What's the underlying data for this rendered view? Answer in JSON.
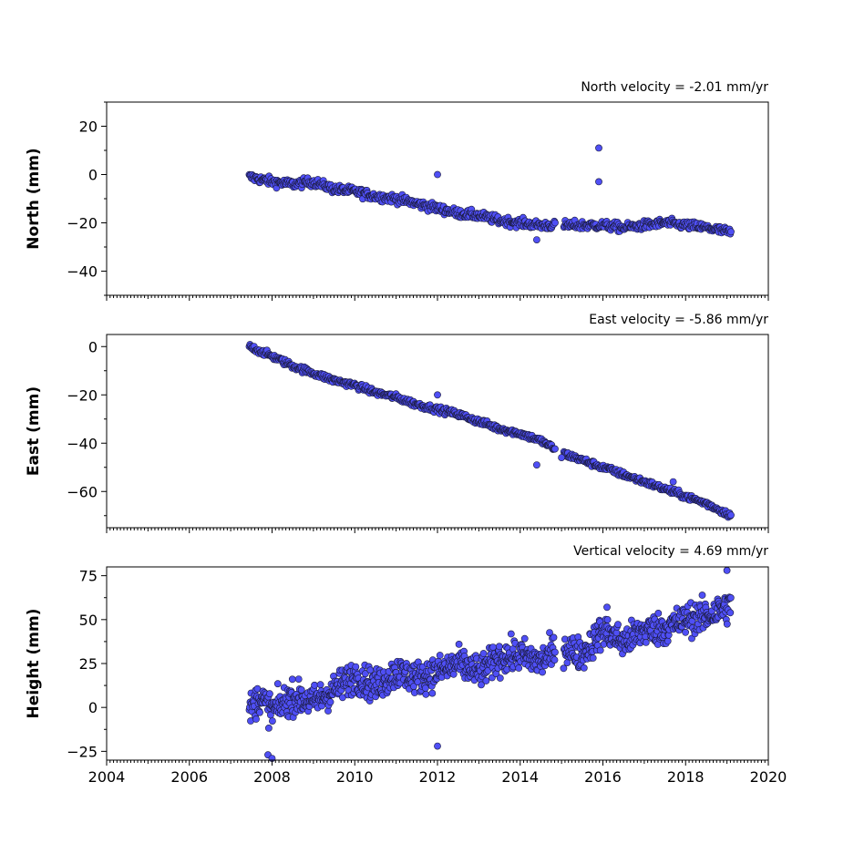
{
  "colors": {
    "marker_fill": "#4f4ff5",
    "marker_edge": "#1a1a3a"
  },
  "x_axis": {
    "min": 2004,
    "max": 2020,
    "ticks": [
      2004,
      2006,
      2008,
      2010,
      2012,
      2014,
      2016,
      2018,
      2020
    ]
  },
  "chart_data": [
    {
      "type": "scatter",
      "title": "North velocity = -2.01 mm/yr",
      "ylabel": "North (mm)",
      "ylim": [
        -50,
        30
      ],
      "yticks": [
        20,
        0,
        -20,
        -40
      ],
      "xlim": [
        2004,
        2020
      ],
      "series": [
        {
          "x": [
            2007.45,
            2008.0,
            2008.5,
            2009.0,
            2009.5,
            2010.0,
            2010.5,
            2011.0,
            2011.5,
            2012.0,
            2012.5,
            2013.0,
            2013.5,
            2014.0,
            2014.5,
            2015.0,
            2015.5,
            2016.0,
            2016.5,
            2017.0,
            2017.5,
            2018.0,
            2018.5,
            2019.1
          ],
          "y": [
            -1,
            -3,
            -4,
            -3,
            -6,
            -7,
            -9,
            -10,
            -12,
            -14,
            -16,
            -17,
            -19,
            -20,
            -21,
            -21,
            -21,
            -21,
            -22,
            -21,
            -20,
            -21,
            -22,
            -24
          ]
        }
      ],
      "outliers": {
        "x": [
          2012.0,
          2015.9,
          2015.9,
          2014.4
        ],
        "y": [
          0,
          11,
          -3,
          -27
        ]
      }
    },
    {
      "type": "scatter",
      "title": "East velocity = -5.86 mm/yr",
      "ylabel": "East (mm)",
      "ylim": [
        -75,
        5
      ],
      "yticks": [
        0,
        -20,
        -40,
        -60
      ],
      "xlim": [
        2004,
        2020
      ],
      "series": [
        {
          "x": [
            2007.45,
            2008.0,
            2008.5,
            2009.0,
            2009.5,
            2010.0,
            2010.5,
            2011.0,
            2011.5,
            2012.0,
            2012.5,
            2013.0,
            2013.5,
            2014.0,
            2014.5,
            2015.0,
            2015.5,
            2016.0,
            2016.5,
            2017.0,
            2017.5,
            2018.0,
            2018.5,
            2019.1
          ],
          "y": [
            0,
            -4,
            -8,
            -11,
            -14,
            -16,
            -19,
            -21,
            -24,
            -26,
            -28,
            -31,
            -34,
            -36,
            -39,
            -44,
            -47,
            -50,
            -53,
            -56,
            -59,
            -62,
            -65,
            -70
          ]
        }
      ],
      "outliers": {
        "x": [
          2012.0,
          2014.4,
          2015.0,
          2017.7
        ],
        "y": [
          -20,
          -49,
          -46,
          -56
        ]
      }
    },
    {
      "type": "scatter",
      "title": "Vertical velocity = 4.69 mm/yr",
      "ylabel": "Height (mm)",
      "ylim": [
        -30,
        80
      ],
      "yticks": [
        75,
        50,
        25,
        0,
        -25
      ],
      "xlim": [
        2004,
        2020
      ],
      "series": [
        {
          "x": [
            2007.45,
            2007.7,
            2008.0,
            2008.5,
            2009.0,
            2009.5,
            2010.0,
            2010.5,
            2011.0,
            2011.5,
            2012.0,
            2012.5,
            2013.0,
            2013.5,
            2014.0,
            2014.5,
            2015.0,
            2015.5,
            2016.0,
            2016.5,
            2017.0,
            2017.5,
            2018.0,
            2018.5,
            2019.1
          ],
          "y": [
            -2,
            6,
            -2,
            6,
            3,
            10,
            18,
            12,
            20,
            17,
            20,
            25,
            20,
            28,
            30,
            26,
            35,
            30,
            44,
            37,
            44,
            45,
            50,
            52,
            58
          ]
        }
      ],
      "outliers": {
        "x": [
          2007.9,
          2008.0,
          2012.0,
          2016.1,
          2019.0
        ],
        "y": [
          -27,
          -29,
          -22,
          57,
          78
        ]
      }
    }
  ]
}
